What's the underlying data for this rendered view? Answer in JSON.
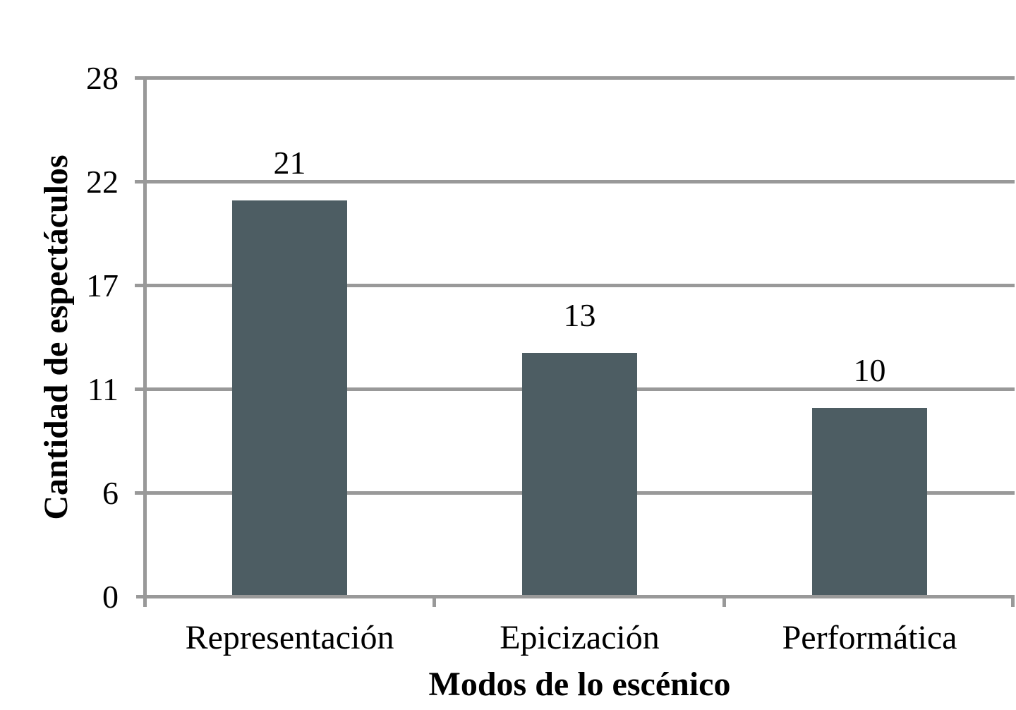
{
  "chart_data": {
    "type": "bar",
    "title": "",
    "categories": [
      "Representación",
      "Epicización",
      "Performática"
    ],
    "values": [
      21,
      13,
      10
    ],
    "xlabel": "Modos de lo escénico",
    "ylabel": "Cantidad de espectáculos",
    "yticks": [
      0,
      6,
      11,
      17,
      22,
      28
    ],
    "ylim": [
      0,
      28
    ],
    "grid": true,
    "legend_position": "none",
    "bar_color": "#4d5d63",
    "axis_color": "#999999",
    "text_color": "#000000",
    "background_color": "#ffffff"
  }
}
